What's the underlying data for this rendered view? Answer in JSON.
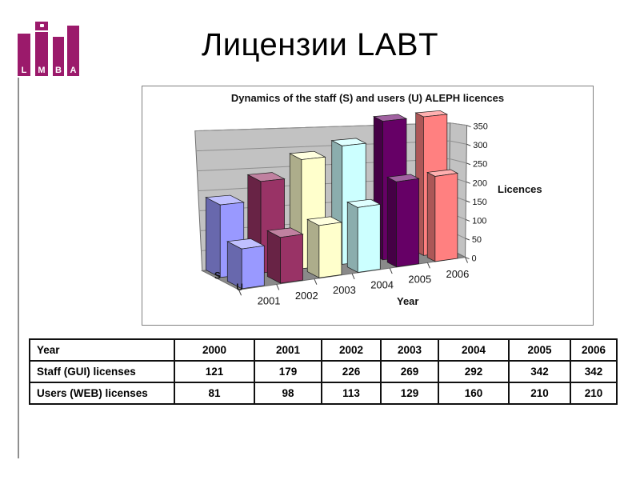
{
  "slide": {
    "title": "Лицензии LABT"
  },
  "logo": {
    "letters": [
      "L",
      "M",
      "B",
      "A"
    ],
    "color": "#9B1A6B"
  },
  "chart_data": {
    "type": "bar",
    "projection": "3d-column",
    "title": "Dynamics of the staff (S) and users (U) ALEPH licences",
    "categories": [
      "2001",
      "2002",
      "2003",
      "2004",
      "2005",
      "2006"
    ],
    "series": [
      {
        "name": "S",
        "values": [
          179,
          226,
          269,
          292,
          342,
          342
        ]
      },
      {
        "name": "U",
        "values": [
          98,
          113,
          129,
          160,
          210,
          210
        ]
      }
    ],
    "xlabel": "Year",
    "ylabel": "Licences",
    "ylim": [
      0,
      350
    ],
    "ytick_step": 50,
    "year_colors": [
      "#9999FF",
      "#993366",
      "#FFFFCC",
      "#CCFFFF",
      "#660066",
      "#FF8080"
    ],
    "wall_color": "#C2C2C2",
    "floor_color": "#8A8A8A",
    "legend_position": "none",
    "grid": true
  },
  "table": {
    "header": [
      "Year",
      "2000",
      "2001",
      "2002",
      "2003",
      "2004",
      "2005",
      "2006"
    ],
    "rows": [
      {
        "label": "Staff (GUI) licenses",
        "values": [
          "121",
          "179",
          "226",
          "269",
          "292",
          "342",
          "342"
        ]
      },
      {
        "label": "Users (WEB) licenses",
        "values": [
          "81",
          "98",
          "113",
          "129",
          "160",
          "210",
          "210"
        ]
      }
    ]
  }
}
